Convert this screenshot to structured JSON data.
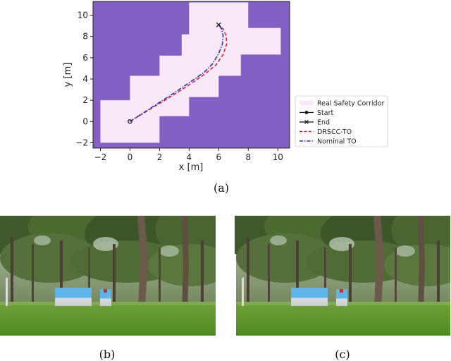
{
  "figure": {
    "captions": {
      "a": "(a)",
      "b": "(b)",
      "c": "(c)"
    }
  },
  "chart_data": {
    "type": "line",
    "xlabel": "x [m]",
    "ylabel": "y [m]",
    "xlim": [
      -2.5,
      10.8
    ],
    "ylim": [
      -2.5,
      11.3
    ],
    "x_ticks": [
      -2,
      0,
      2,
      4,
      6,
      8,
      10
    ],
    "y_ticks": [
      -2,
      0,
      2,
      4,
      6,
      8,
      10
    ],
    "grid": false,
    "legend_placement": "outside right",
    "colors": {
      "background": "#8560c4",
      "corridor": "#f9e9f8",
      "start_end": "#111111",
      "drscc": "#e8202a",
      "nominal": "#2333d6"
    },
    "corridor_boxes": [
      {
        "x": [
          -2,
          2
        ],
        "y": [
          -2,
          2
        ]
      },
      {
        "x": [
          0,
          4
        ],
        "y": [
          0.5,
          4.3
        ]
      },
      {
        "x": [
          2,
          6
        ],
        "y": [
          2.3,
          6.2
        ]
      },
      {
        "x": [
          3.5,
          7.5
        ],
        "y": [
          4.3,
          8.2
        ]
      },
      {
        "x": [
          5.2,
          10.2
        ],
        "y": [
          6.3,
          8.8
        ]
      },
      {
        "x": [
          4,
          8
        ],
        "y": [
          7.1,
          11.2
        ]
      }
    ],
    "start": {
      "x": 0,
      "y": 0
    },
    "end": {
      "x": 6,
      "y": 9.1
    },
    "series": [
      {
        "name": "DRSCC-TO",
        "style": "dashed",
        "x": [
          0,
          1,
          2,
          3,
          4,
          5,
          5.8,
          6.3,
          6.55,
          6.5,
          6.3,
          6.0
        ],
        "y": [
          0,
          0.85,
          1.7,
          2.55,
          3.45,
          4.4,
          5.3,
          6.3,
          7.3,
          8.1,
          8.7,
          9.1
        ]
      },
      {
        "name": "Nominal TO",
        "style": "dashdot",
        "x": [
          0,
          1,
          2,
          3,
          4,
          5,
          5.6,
          6.0,
          6.25,
          6.3,
          6.2,
          6.0
        ],
        "y": [
          0,
          0.9,
          1.8,
          2.7,
          3.65,
          4.6,
          5.45,
          6.4,
          7.3,
          8.1,
          8.7,
          9.1
        ]
      }
    ],
    "legend": [
      {
        "key": "corridor",
        "label": "Real Safety Corridor"
      },
      {
        "key": "start",
        "label": "Start"
      },
      {
        "key": "end",
        "label": "End"
      },
      {
        "key": "drscc",
        "label": "DRSCC-TO"
      },
      {
        "key": "nominal",
        "label": "Nominal TO"
      }
    ]
  },
  "photos": {
    "b": {
      "icon": "forest-scene-photo"
    },
    "c": {
      "icon": "forest-scene-photo"
    }
  }
}
